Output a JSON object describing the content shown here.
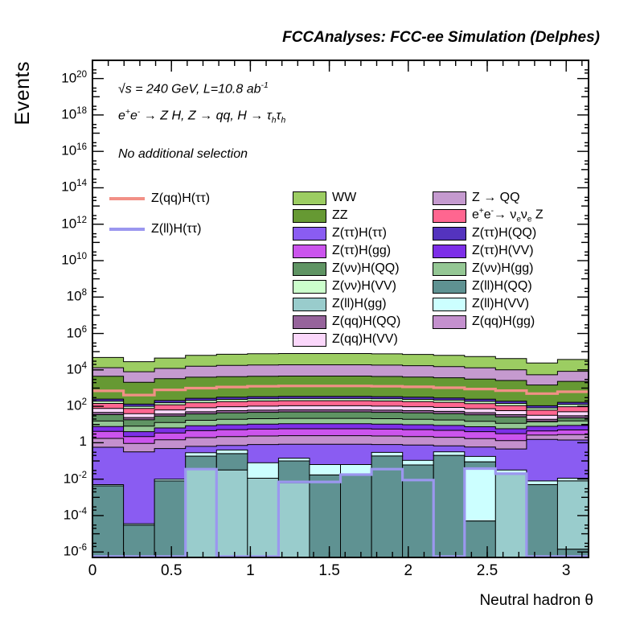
{
  "title": "FCCAnalyses: FCC-ee Simulation (Delphes)",
  "y_axis": {
    "label": "Events",
    "tick_exponents": [
      -6,
      -4,
      -2,
      0,
      2,
      4,
      6,
      8,
      10,
      12,
      14,
      16,
      18,
      20
    ]
  },
  "x_axis": {
    "label": "Neutral hadron θ",
    "major_ticks": [
      0,
      0.5,
      1,
      1.5,
      2,
      2.5,
      3
    ],
    "minor_step": 0.1
  },
  "annotations": [
    {
      "segs": [
        {
          "t": "√s = 240 GeV, L=10.8 ab"
        },
        {
          "t": "-1",
          "sup": 1
        }
      ]
    },
    {
      "segs": [
        {
          "t": "e"
        },
        {
          "t": "+",
          "sup": 1
        },
        {
          "t": "e"
        },
        {
          "t": "-",
          "sup": 1
        },
        {
          "t": " → Z H, Z → qq, H → τ"
        },
        {
          "t": "h",
          "sub": 1
        },
        {
          "t": "τ"
        },
        {
          "t": "h",
          "sub": 1
        }
      ]
    },
    {
      "segs": [
        {
          "t": "No additional selection"
        }
      ]
    }
  ],
  "palette": {
    "WW": "#9CCD62",
    "ZZ": "#669933",
    "ZQQ": "#C59ACF",
    "eennZ": "#FF6690",
    "ttHtt": "#8A5CF2",
    "ttHgg": "#CB54ED",
    "ttHQQ": "#5433BE",
    "ttHVV": "#7D2FE8",
    "nnHQQ": "#5F9463",
    "nnHVV": "#CCFFCC",
    "nnHgg": "#94C794",
    "llgg": "#99CCCC",
    "llQQ": "#5F9292",
    "llVV": "#CCFFFF",
    "qqHQQ": "#96639B",
    "qqHVV": "#FBD7FB",
    "qqHgg": "#C490CE",
    "sig_qq": "#F29086",
    "sig_ll": "#9B97EF"
  },
  "legend": {
    "line_items": [
      {
        "c": "sig_qq",
        "segs": [
          {
            "t": "Z(qq)H(ττ)"
          }
        ]
      },
      {
        "c": "sig_ll",
        "segs": [
          {
            "t": "Z(ll)H(ττ)"
          }
        ]
      }
    ],
    "col1": [
      {
        "c": "WW",
        "segs": [
          {
            "t": "WW"
          }
        ]
      },
      {
        "c": "ZZ",
        "segs": [
          {
            "t": "ZZ"
          }
        ]
      },
      {
        "c": "ttHtt",
        "segs": [
          {
            "t": "Z(ττ)H(ττ)"
          }
        ]
      },
      {
        "c": "ttHgg",
        "segs": [
          {
            "t": "Z(ττ)H(gg)"
          }
        ]
      },
      {
        "c": "nnHQQ",
        "segs": [
          {
            "t": "Z(νν)H(QQ)"
          }
        ]
      },
      {
        "c": "nnHVV",
        "segs": [
          {
            "t": "Z(νν)H(VV)"
          }
        ]
      },
      {
        "c": "llgg",
        "segs": [
          {
            "t": "Z(ll)H(gg)"
          }
        ]
      },
      {
        "c": "qqHQQ",
        "segs": [
          {
            "t": "Z(qq)H(QQ)"
          }
        ]
      },
      {
        "c": "qqHVV",
        "segs": [
          {
            "t": "Z(qq)H(VV)"
          }
        ]
      }
    ],
    "col2": [
      {
        "c": "ZQQ",
        "segs": [
          {
            "t": "Z → QQ"
          }
        ]
      },
      {
        "c": "eennZ",
        "segs": [
          {
            "t": "e"
          },
          {
            "t": "+",
            "sup": 1
          },
          {
            "t": "e"
          },
          {
            "t": "-",
            "sup": 1
          },
          {
            "t": "→ ν"
          },
          {
            "t": "e",
            "sub": 1
          },
          {
            "t": "ν"
          },
          {
            "t": "e",
            "sub": 1
          },
          {
            "t": " Z"
          }
        ]
      },
      {
        "c": "ttHQQ",
        "segs": [
          {
            "t": "Z(ττ)H(QQ)"
          }
        ]
      },
      {
        "c": "ttHVV",
        "segs": [
          {
            "t": "Z(ττ)H(VV)"
          }
        ]
      },
      {
        "c": "nnHgg",
        "segs": [
          {
            "t": "Z(νν)H(gg)"
          }
        ]
      },
      {
        "c": "llQQ",
        "segs": [
          {
            "t": "Z(ll)H(QQ)"
          }
        ]
      },
      {
        "c": "llVV",
        "segs": [
          {
            "t": "Z(ll)H(VV)"
          }
        ]
      },
      {
        "c": "qqHgg",
        "segs": [
          {
            "t": "Z(qq)H(gg)"
          }
        ]
      }
    ]
  },
  "chart_data": {
    "type": "stacked-step-histogram",
    "x_min": 0,
    "x_max": 3.1416,
    "n_bins": 16,
    "y_scale": "log10",
    "y_log_min": -6.3,
    "y_log_max": 21.0,
    "floor_log10": -6.3,
    "stack_series_cumulative_tops_log10": [
      {
        "name": "WW",
        "c": "WW",
        "tops": [
          4.68,
          4.45,
          4.65,
          4.8,
          4.86,
          4.89,
          4.9,
          4.9,
          4.9,
          4.88,
          4.85,
          4.8,
          4.73,
          4.62,
          4.38,
          4.57
        ]
      },
      {
        "name": "Z → QQ",
        "c": "ZQQ",
        "tops": [
          4.12,
          3.9,
          4.08,
          4.2,
          4.25,
          4.27,
          4.28,
          4.28,
          4.28,
          4.26,
          4.23,
          4.18,
          4.11,
          4.0,
          3.73,
          3.92
        ]
      },
      {
        "name": "ZZ",
        "c": "ZZ",
        "tops": [
          3.65,
          3.32,
          3.52,
          3.6,
          3.63,
          3.65,
          3.66,
          3.66,
          3.66,
          3.64,
          3.61,
          3.57,
          3.5,
          3.42,
          3.17,
          3.37
        ]
      },
      {
        "name": "Z(ττ)H(QQ)",
        "c": "ttHQQ",
        "tops": [
          2.4,
          2.12,
          2.32,
          2.44,
          2.5,
          2.53,
          2.55,
          2.55,
          2.55,
          2.53,
          2.5,
          2.46,
          2.39,
          2.28,
          2.03,
          2.22
        ]
      },
      {
        "name": "Z(νν)H(VV)",
        "c": "nnHVV",
        "tops": [
          2.28,
          2.0,
          2.2,
          2.32,
          2.38,
          2.41,
          2.43,
          2.43,
          2.43,
          2.41,
          2.38,
          2.34,
          2.27,
          2.16,
          1.91,
          2.1
        ]
      },
      {
        "name": "e+e- → νeνe Z",
        "c": "eennZ",
        "tops": [
          2.16,
          1.88,
          2.08,
          2.2,
          2.26,
          2.29,
          2.31,
          2.31,
          2.31,
          2.29,
          2.26,
          2.22,
          2.15,
          2.04,
          1.79,
          1.98
        ]
      },
      {
        "name": "Z(qq)H(VV)",
        "c": "qqHVV",
        "tops": [
          1.88,
          1.6,
          1.8,
          1.92,
          1.98,
          2.01,
          2.03,
          2.03,
          2.03,
          2.01,
          1.98,
          1.94,
          1.87,
          1.76,
          1.51,
          1.7
        ]
      },
      {
        "name": "Z(qq)H(QQ)",
        "c": "qqHQQ",
        "tops": [
          1.66,
          1.38,
          1.58,
          1.7,
          1.76,
          1.79,
          1.81,
          1.81,
          1.81,
          1.79,
          1.76,
          1.72,
          1.65,
          1.54,
          1.29,
          1.48
        ]
      },
      {
        "name": "Z(νν)H(QQ)",
        "c": "nnHQQ",
        "tops": [
          1.54,
          1.26,
          1.46,
          1.58,
          1.64,
          1.67,
          1.69,
          1.69,
          1.69,
          1.67,
          1.64,
          1.6,
          1.53,
          1.42,
          1.17,
          1.36
        ]
      },
      {
        "name": "Z(νν)H(gg)",
        "c": "nnHgg",
        "tops": [
          1.19,
          0.91,
          1.11,
          1.23,
          1.29,
          1.32,
          1.34,
          1.34,
          1.34,
          1.32,
          1.29,
          1.25,
          1.18,
          1.07,
          1.15,
          1.2
        ]
      },
      {
        "name": "Z(ττ)H(VV)",
        "c": "ttHVV",
        "tops": [
          0.89,
          0.61,
          0.81,
          0.93,
          0.99,
          1.02,
          1.04,
          1.04,
          1.04,
          1.02,
          0.99,
          0.95,
          0.88,
          0.77,
          0.9,
          0.95
        ]
      },
      {
        "name": "Z(ττ)H(gg)",
        "c": "ttHgg",
        "tops": [
          0.62,
          0.34,
          0.54,
          0.66,
          0.72,
          0.75,
          0.77,
          0.77,
          0.77,
          0.75,
          0.72,
          0.68,
          0.61,
          0.5,
          0.65,
          0.7
        ]
      },
      {
        "name": "Z(qq)H(gg)",
        "c": "qqHgg",
        "tops": [
          0.24,
          -0.04,
          0.16,
          0.28,
          0.34,
          0.37,
          0.39,
          0.39,
          0.39,
          0.37,
          0.34,
          0.3,
          0.23,
          0.12,
          0.42,
          0.45
        ]
      },
      {
        "name": "Z(ττ)H(ττ)",
        "c": "ttHtt",
        "tops": [
          -0.25,
          -0.5,
          -0.32,
          -0.2,
          -0.15,
          -0.1,
          -0.08,
          -0.08,
          -0.08,
          -0.1,
          -0.13,
          -0.17,
          -0.24,
          -0.34,
          0.18,
          0.15
        ]
      }
    ],
    "bottom_segments_log10": [
      [
        [
          -2.3,
          -2.37,
          "llVV"
        ],
        [
          -2.37,
          -6.3,
          "llQQ"
        ]
      ],
      [
        [
          -4.45,
          -4.53,
          "llVV"
        ],
        [
          -4.53,
          -6.3,
          "llQQ"
        ]
      ],
      [
        [
          -2.0,
          -2.1,
          "llVV"
        ],
        [
          -2.1,
          -6.3,
          "llQQ"
        ]
      ],
      [
        [
          -0.55,
          -0.74,
          "llVV"
        ],
        [
          -0.74,
          -1.45,
          "llQQ"
        ],
        [
          -1.45,
          -6.3,
          "llgg"
        ]
      ],
      [
        [
          -0.4,
          -0.6,
          "llVV"
        ],
        [
          -0.6,
          -1.5,
          "llQQ"
        ],
        [
          -1.5,
          -6.3,
          "llgg"
        ]
      ],
      [
        [
          -1.1,
          -1.95,
          "llVV"
        ],
        [
          -1.95,
          -6.3,
          "llgg"
        ]
      ],
      [
        [
          -0.85,
          -1.0,
          "llVV"
        ],
        [
          -1.0,
          -2.2,
          "llQQ"
        ],
        [
          -2.2,
          -6.3,
          "llgg"
        ]
      ],
      [
        [
          -1.2,
          -1.77,
          "llVV"
        ],
        [
          -1.77,
          -6.3,
          "llQQ"
        ]
      ],
      [
        [
          -1.2,
          -1.75,
          "llVV"
        ],
        [
          -1.75,
          -6.3,
          "llQQ"
        ]
      ],
      [
        [
          -0.53,
          -0.73,
          "llVV"
        ],
        [
          -0.73,
          -6.3,
          "llQQ"
        ]
      ],
      [
        [
          -0.97,
          -1.22,
          "llVV"
        ],
        [
          -1.22,
          -6.3,
          "llQQ"
        ]
      ],
      [
        [
          -0.5,
          -0.7,
          "llVV"
        ],
        [
          -0.7,
          -6.3,
          "llQQ"
        ]
      ],
      [
        [
          -0.75,
          -1.05,
          "llVV"
        ],
        [
          -1.05,
          -1.4,
          "llQQ"
        ],
        [
          -1.4,
          -4.3,
          "llVV"
        ],
        [
          -4.3,
          -6.3,
          "llQQ"
        ]
      ],
      [
        [
          -1.5,
          -1.7,
          "llVV"
        ],
        [
          -1.7,
          -6.3,
          "llgg"
        ]
      ],
      [
        [
          -2.1,
          -2.3,
          "llVV"
        ],
        [
          -2.3,
          -6.3,
          "llQQ"
        ]
      ],
      [
        [
          -1.95,
          -2.1,
          "llVV"
        ],
        [
          -2.1,
          -5.85,
          "llgg"
        ],
        [
          -5.85,
          -6.3,
          "llQQ"
        ]
      ]
    ],
    "signal_lines_log10": [
      {
        "name": "Z(qq)H(ττ)",
        "c": "sig_qq",
        "values": [
          2.85,
          2.62,
          2.9,
          3.0,
          3.06,
          3.1,
          3.12,
          3.12,
          3.12,
          3.1,
          3.07,
          3.02,
          2.95,
          2.86,
          2.7,
          2.8
        ]
      },
      {
        "name": "Z(ll)H(ττ)",
        "c": "sig_ll",
        "values": [
          -6.25,
          -6.25,
          -6.25,
          -1.45,
          -6.25,
          -6.25,
          -2.15,
          -2.15,
          -1.75,
          -1.45,
          -2.05,
          -6.25,
          -1.42,
          -1.7,
          -6.25,
          -6.25
        ]
      }
    ]
  }
}
